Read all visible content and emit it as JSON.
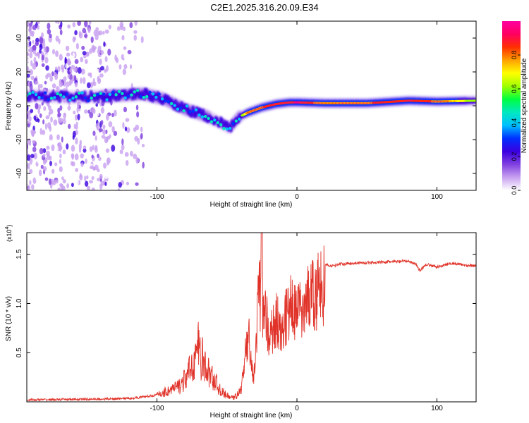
{
  "title": "C2E1.2025.316.20.09.E34",
  "colors": {
    "snr_line": "#e03228",
    "axis": "#000000",
    "colorbar": [
      "#ffffff",
      "#c8a0f0",
      "#8040e0",
      "#3a00e0",
      "#0030ff",
      "#00c0ff",
      "#00e8c0",
      "#00ff40",
      "#a0ff00",
      "#ffff00",
      "#ffa000",
      "#ff3000",
      "#ff0060",
      "#ff00a0"
    ]
  },
  "chart_data": [
    {
      "type": "heatmap",
      "name": "spectrogram",
      "xlabel": "Height of straight line (km)",
      "ylabel": "Frequency (Hz)",
      "xlim": [
        -193,
        128
      ],
      "ylim": [
        -50,
        50
      ],
      "xticks": [
        -100,
        0,
        100
      ],
      "xtick_labels": [
        "-100",
        "0",
        "100"
      ],
      "yticks": [
        -40,
        -20,
        0,
        20,
        40
      ],
      "ytick_labels": [
        "-40",
        "-20",
        "0",
        "20",
        "40"
      ],
      "colorbar": {
        "label": "Normalized spectral amplitude",
        "range": [
          0,
          1
        ],
        "ticks": [
          0.0,
          0.2,
          0.4,
          0.6,
          0.8
        ],
        "tick_labels": [
          "0.0",
          "0.2",
          "0.4",
          "0.6",
          "0.8"
        ]
      },
      "ridge": {
        "x": [
          -185,
          -160,
          -130,
          -110,
          -95,
          -80,
          -65,
          -55,
          -48,
          -42,
          -35,
          -25,
          -15,
          -5,
          0,
          20,
          50,
          80,
          100,
          128
        ],
        "y": [
          6,
          5,
          6,
          7,
          4,
          -2,
          -6,
          -10,
          -13,
          -7,
          -4,
          -1,
          1,
          2,
          2,
          1.5,
          1.5,
          3,
          2.5,
          3
        ],
        "amplitude": [
          0.35,
          0.35,
          0.4,
          0.45,
          0.4,
          0.4,
          0.4,
          0.35,
          0.35,
          0.5,
          0.75,
          0.8,
          0.85,
          0.85,
          0.9,
          0.75,
          0.8,
          0.85,
          0.8,
          0.6
        ]
      }
    },
    {
      "type": "line",
      "name": "snr",
      "xlabel": "Height of straight line (km)",
      "ylabel": "SNR (10 * v/v)",
      "scale_label": "(x10",
      "scale_exp": "4",
      "scale_close": ")",
      "xlim": [
        -193,
        128
      ],
      "ylim": [
        0,
        1.72
      ],
      "xticks": [
        -100,
        0,
        100
      ],
      "xtick_labels": [
        "-100",
        "0",
        "100"
      ],
      "yticks": [
        0.5,
        1.0,
        1.5
      ],
      "ytick_labels": [
        "0.5",
        "1.0",
        "1.5"
      ],
      "series": [
        {
          "name": "SNR",
          "x": [
            -193,
            -160,
            -130,
            -115,
            -100,
            -90,
            -85,
            -80,
            -77,
            -73,
            -70,
            -66,
            -62,
            -58,
            -55,
            -50,
            -45,
            -40,
            -37,
            -34,
            -31,
            -29,
            -27,
            -25,
            -23,
            -20,
            -15,
            -10,
            -5,
            0,
            5,
            10,
            15,
            20,
            25,
            30,
            40,
            60,
            80,
            85,
            88,
            92,
            100,
            110,
            120,
            128
          ],
          "y": [
            0.02,
            0.025,
            0.03,
            0.04,
            0.07,
            0.12,
            0.15,
            0.22,
            0.3,
            0.45,
            0.55,
            0.35,
            0.28,
            0.2,
            0.12,
            0.06,
            0.04,
            0.12,
            0.55,
            0.75,
            0.25,
            0.7,
            1.5,
            0.9,
            1.2,
            0.7,
            1.0,
            0.9,
            1.15,
            1.05,
            1.2,
            1.25,
            1.32,
            1.4,
            1.38,
            1.4,
            1.41,
            1.42,
            1.43,
            1.4,
            1.33,
            1.4,
            1.37,
            1.41,
            1.39,
            1.38
          ]
        }
      ]
    }
  ]
}
